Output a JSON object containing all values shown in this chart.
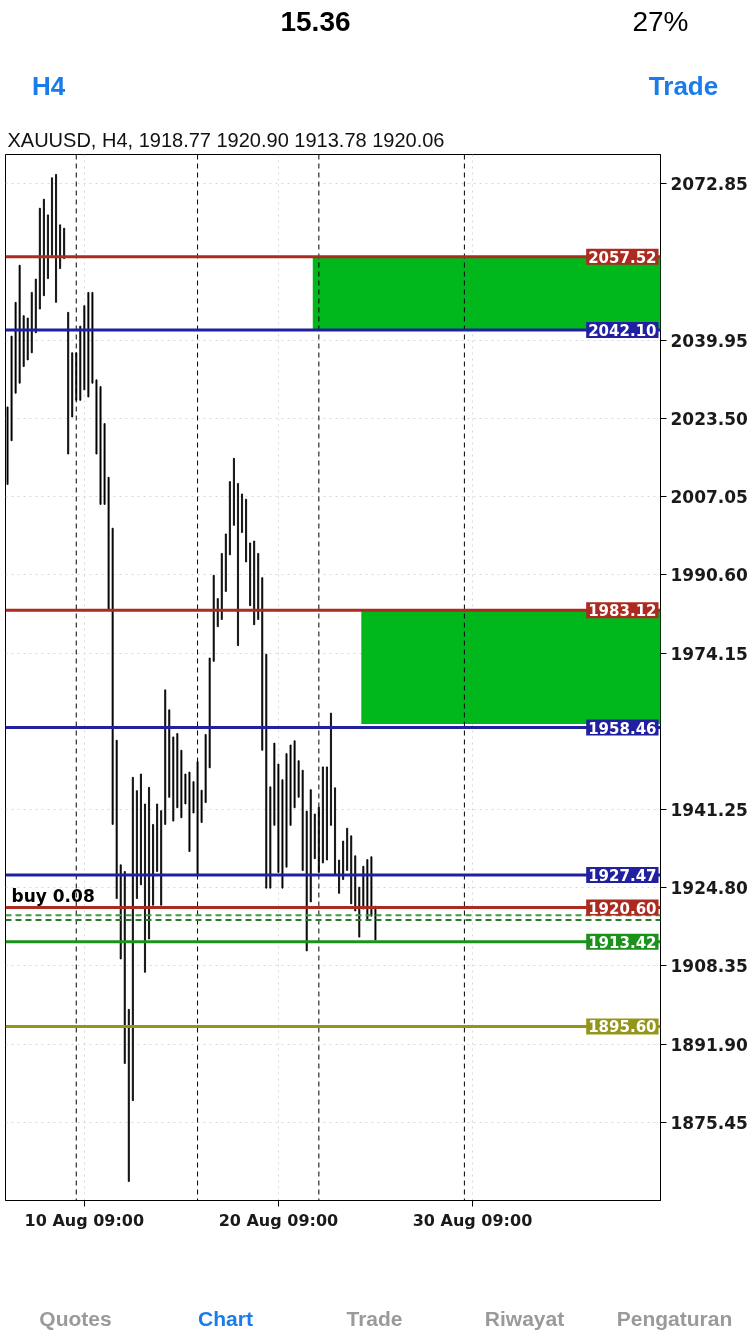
{
  "chart_data": {
    "type": "bar",
    "title": "XAUUSD, H4, 1918.77 1920.90 1913.78 1920.06",
    "categories": [
      null,
      null,
      null,
      null,
      null,
      null,
      null,
      null,
      null,
      null,
      null,
      null,
      null,
      null,
      null,
      null,
      null,
      null,
      null,
      "10 Aug 09:00",
      null,
      null,
      null,
      null,
      null,
      null,
      null,
      null,
      null,
      null,
      null,
      null,
      null,
      null,
      null,
      null,
      null,
      null,
      null,
      null,
      null,
      null,
      null,
      null,
      null,
      null,
      null,
      null,
      null,
      null,
      null,
      null,
      null,
      null,
      null,
      null,
      null,
      null,
      null,
      null,
      null,
      null,
      null,
      null,
      null,
      null,
      null,
      "20 Aug 09:00",
      null,
      null,
      null,
      null,
      null,
      null,
      null,
      null,
      null,
      null,
      null,
      null,
      null,
      null,
      null,
      null,
      null,
      null,
      null,
      null,
      null,
      null,
      null,
      null,
      null,
      null,
      null,
      null,
      null,
      null,
      null,
      null,
      null,
      null,
      null,
      null,
      null,
      null,
      null,
      null,
      null,
      null,
      null,
      null,
      null,
      null,
      null,
      "30 Aug 09:00",
      null,
      null,
      null,
      null,
      null,
      null,
      null,
      null,
      null,
      null,
      null,
      null,
      null,
      null,
      null,
      null,
      null,
      null,
      null,
      null,
      null,
      null,
      null,
      null,
      null,
      null,
      null,
      null,
      null,
      null,
      null,
      null,
      null,
      null,
      null,
      null,
      null,
      null,
      null,
      null,
      null,
      null,
      null,
      null,
      null,
      null
    ],
    "series": [
      {
        "color": "#000000",
        "base": [
          2009.6,
          2018.8,
          2028.8,
          2030.9,
          2034.4,
          2035.8,
          2037.3,
          2041.5,
          2046.5,
          2049.3,
          2052.9,
          2057.8,
          2047.9,
          2055.0,
          2057.1,
          2016.0,
          2023.8,
          2027.3,
          2027.3,
          2029.5,
          2028.0,
          2030.9,
          2016.0,
          2005.4,
          2005.4,
          1983.4,
          1938.1,
          1922.5,
          1909.8,
          1887.8,
          1863.0,
          1880.0,
          1922.5,
          1925.4,
          1907.0,
          1914.0,
          1921.1,
          1928.2,
          1921.1,
          1938.1,
          1943.8,
          1938.8,
          1941.6,
          1939.5,
          1942.4,
          1932.4,
          1940.5,
          1927.6,
          1938.5,
          1942.7,
          1950.0,
          1972.4,
          1979.7,
          1981.2,
          1987.1,
          1994.8,
          2001.0,
          1975.7,
          1999.5,
          1993.3,
          1984.1,
          1980.1,
          1981.2,
          1953.7,
          1924.7,
          1924.7,
          1937.9,
          1928.0,
          1924.7,
          1929.1,
          1937.9,
          1941.6,
          1943.8,
          1928.4,
          1911.5,
          1921.8,
          1930.9,
          1928.0,
          1930.0,
          1930.6,
          1937.9,
          1927.6,
          1923.6,
          1926.5,
          1928.4,
          1921.4,
          1919.9,
          1914.4,
          1920.3,
          1918.1,
          1918.8,
          1913.78,
          null,
          null,
          null,
          null,
          null,
          null,
          null,
          null,
          null,
          null,
          null,
          null,
          null,
          null,
          null,
          null,
          null,
          null,
          null,
          null,
          null,
          null,
          null,
          null,
          null,
          null,
          null,
          null,
          null,
          null,
          null,
          null,
          null,
          null,
          null,
          null,
          null,
          null,
          null,
          null,
          null,
          null,
          null,
          null,
          null,
          null,
          null,
          null,
          null,
          null,
          null,
          null,
          null,
          null,
          null,
          null,
          null,
          null,
          null,
          null,
          null,
          null,
          null,
          null,
          null,
          null,
          null,
          null,
          null,
          null
        ],
        "values": [
          16.3,
          22.0,
          19.1,
          24.8,
          10.7,
          8.8,
          12.7,
          11.3,
          21.2,
          20.3,
          13.4,
          16.3,
          26.9,
          9.2,
          6.4,
          29.8,
          13.5,
          10.0,
          15.6,
          17.7,
          22.0,
          19.1,
          15.6,
          24.8,
          17.0,
          27.7,
          62.3,
          33.3,
          19.8,
          40.4,
          36.2,
          68.0,
          22.7,
          23.3,
          35.4,
          31.9,
          17.0,
          14.2,
          19.9,
          28.3,
          18.4,
          17.7,
          15.6,
          14.2,
          6.3,
          16.7,
          6.6,
          23.7,
          6.8,
          14.3,
          23.1,
          18.1,
          5.9,
          13.9,
          12.1,
          15.4,
          14.1,
          34.1,
          8.1,
          13.2,
          13.2,
          17.6,
          13.9,
          36.3,
          49.2,
          21.3,
          17.3,
          22.8,
          22.8,
          23.9,
          16.9,
          14.1,
          7.7,
          21.1,
          29.4,
          23.6,
          9.4,
          13.7,
          20.2,
          19.6,
          23.6,
          18.2,
          7.0,
          8.1,
          8.9,
          14.3,
          11.6,
          10.5,
          9.0,
          12.6,
          12.5,
          7.12,
          null,
          null,
          null,
          null,
          null,
          null,
          null,
          null,
          null,
          null,
          null,
          null,
          null,
          null,
          null,
          null,
          null,
          null,
          null,
          null,
          null,
          null,
          null,
          null,
          null,
          null,
          null,
          null,
          null,
          null,
          null,
          null,
          null,
          null,
          null,
          null,
          null,
          null,
          null,
          null,
          null,
          null,
          null,
          null,
          null,
          null,
          null,
          null,
          null,
          null,
          null,
          null,
          null,
          null,
          null,
          null,
          null,
          null,
          null,
          null,
          null,
          null,
          null,
          null,
          null,
          null,
          null,
          null,
          null,
          null
        ]
      }
    ],
    "ylim": [
      1859,
      2079
    ],
    "yticks": [
      2072.85,
      2039.95,
      {
        "value": 2023.5,
        "label": "2023.50"
      },
      2007.05,
      {
        "value": 1990.6,
        "label": "1990.60"
      },
      1974.15,
      1941.25,
      {
        "value": 1924.8,
        "label": "1924.80"
      },
      1908.35,
      {
        "value": 1891.9,
        "label": "1891.90"
      },
      1875.45
    ],
    "grid": true,
    "bands": [
      {
        "axis": "y",
        "from": 2042.1,
        "to": 2057.5,
        "color": "#00b81c"
      },
      {
        "axis": "y",
        "from": 1959.2,
        "to": 1983.1,
        "color": "#00b81c"
      }
    ],
    "ref_lines": [
      {
        "axis": "y",
        "value": 2057.52,
        "label": "2057.52",
        "color": "#ac2a1f"
      },
      {
        "axis": "y",
        "value": 2042.1,
        "label": "2042.10",
        "color": "#2020a0"
      },
      {
        "axis": "y",
        "value": 1983.12,
        "label": "1983.12",
        "color": "#ac2a1f"
      },
      {
        "axis": "y",
        "value": 1958.46,
        "label": "1958.46",
        "color": "#2020a0"
      },
      {
        "axis": "y",
        "value": 1927.47,
        "label": "1927.47",
        "color": "#2020a0"
      },
      {
        "axis": "y",
        "value": 1920.6,
        "label": "1920.60",
        "color": "#ac2a1f"
      },
      {
        "axis": "y",
        "value": 1919.0,
        "color": "#3c9c3c",
        "line_style": "dashed"
      },
      {
        "axis": "y",
        "value": 1918.0,
        "color": "#2c7a2c",
        "line_style": "dashed"
      },
      {
        "axis": "y",
        "value": 1913.42,
        "label": "1913.42",
        "color": "#1b921b"
      },
      {
        "axis": "y",
        "value": 1895.6,
        "label": "1895.60",
        "color": "#94961a"
      }
    ],
    "annotations": [
      "15.36",
      "27%",
      "H4",
      "Trade",
      {
        "text": "buy 0.08",
        "y": 1920.6
      },
      "Quotes",
      "Chart",
      "Trade",
      "Riwayat",
      "Pengaturan"
    ]
  }
}
